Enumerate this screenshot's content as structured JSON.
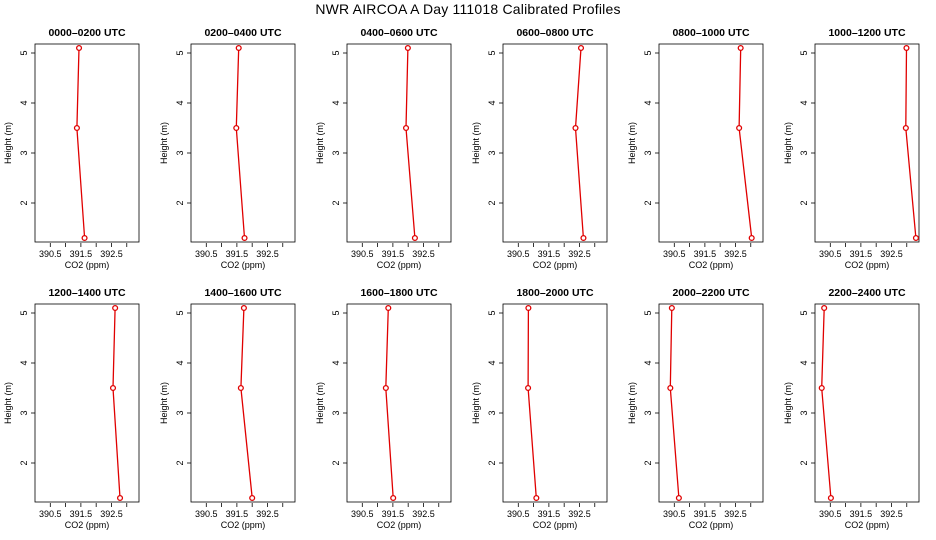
{
  "figure": {
    "title": "NWR AIRCOA A  Day 111018  Calibrated Profiles"
  },
  "chart_data": [
    {
      "type": "line",
      "title": "0000–0200 UTC",
      "xlabel": "CO2 (ppm)",
      "ylabel": "Height (m)",
      "xlim": [
        390.0,
        393.4
      ],
      "ylim": [
        1.22,
        5.18
      ],
      "x_ticks": [
        "390.5",
        "391.5",
        "392.5"
      ],
      "y_ticks": [
        "2",
        "3",
        "4",
        "5"
      ],
      "series": [
        {
          "x": [
            391.44,
            391.37,
            391.62
          ],
          "y": [
            5.1,
            3.5,
            1.3
          ]
        }
      ],
      "color": "#e00000"
    },
    {
      "type": "line",
      "title": "0200–0400 UTC",
      "xlabel": "CO2 (ppm)",
      "ylabel": "Height (m)",
      "xlim": [
        390.0,
        393.4
      ],
      "ylim": [
        1.22,
        5.18
      ],
      "x_ticks": [
        "390.5",
        "391.5",
        "392.5"
      ],
      "y_ticks": [
        "2",
        "3",
        "4",
        "5"
      ],
      "series": [
        {
          "x": [
            391.56,
            391.48,
            391.75
          ],
          "y": [
            5.1,
            3.5,
            1.3
          ]
        }
      ],
      "color": "#e00000"
    },
    {
      "type": "line",
      "title": "0400–0600 UTC",
      "xlabel": "CO2 (ppm)",
      "ylabel": "Height (m)",
      "xlim": [
        390.0,
        393.4
      ],
      "ylim": [
        1.22,
        5.18
      ],
      "x_ticks": [
        "390.5",
        "391.5",
        "392.5"
      ],
      "y_ticks": [
        "2",
        "3",
        "4",
        "5"
      ],
      "series": [
        {
          "x": [
            391.99,
            391.93,
            392.22
          ],
          "y": [
            5.1,
            3.5,
            1.3
          ]
        }
      ],
      "color": "#e00000"
    },
    {
      "type": "line",
      "title": "0600–0800 UTC",
      "xlabel": "CO2 (ppm)",
      "ylabel": "Height (m)",
      "xlim": [
        390.0,
        393.4
      ],
      "ylim": [
        1.22,
        5.18
      ],
      "x_ticks": [
        "390.5",
        "391.5",
        "392.5"
      ],
      "y_ticks": [
        "2",
        "3",
        "4",
        "5"
      ],
      "series": [
        {
          "x": [
            392.55,
            392.37,
            392.63
          ],
          "y": [
            5.1,
            3.5,
            1.3
          ]
        }
      ],
      "color": "#e00000"
    },
    {
      "type": "line",
      "title": "0800–1000 UTC",
      "xlabel": "CO2 (ppm)",
      "ylabel": "Height (m)",
      "xlim": [
        390.0,
        393.4
      ],
      "ylim": [
        1.22,
        5.18
      ],
      "x_ticks": [
        "390.5",
        "391.5",
        "392.5"
      ],
      "y_ticks": [
        "2",
        "3",
        "4",
        "5"
      ],
      "series": [
        {
          "x": [
            392.67,
            392.62,
            393.03
          ],
          "y": [
            5.1,
            3.5,
            1.3
          ]
        }
      ],
      "color": "#e00000"
    },
    {
      "type": "line",
      "title": "1000–1200 UTC",
      "xlabel": "CO2 (ppm)",
      "ylabel": "Height (m)",
      "xlim": [
        390.0,
        393.4
      ],
      "ylim": [
        1.22,
        5.18
      ],
      "x_ticks": [
        "390.5",
        "391.5",
        "392.5"
      ],
      "y_ticks": [
        "2",
        "3",
        "4",
        "5"
      ],
      "series": [
        {
          "x": [
            392.99,
            392.97,
            393.3
          ],
          "y": [
            5.1,
            3.5,
            1.3
          ]
        }
      ],
      "color": "#e00000"
    },
    {
      "type": "line",
      "title": "1200–1400 UTC",
      "xlabel": "CO2 (ppm)",
      "ylabel": "Height (m)",
      "xlim": [
        390.0,
        393.4
      ],
      "ylim": [
        1.22,
        5.18
      ],
      "x_ticks": [
        "390.5",
        "391.5",
        "392.5"
      ],
      "y_ticks": [
        "2",
        "3",
        "4",
        "5"
      ],
      "series": [
        {
          "x": [
            392.62,
            392.55,
            392.78
          ],
          "y": [
            5.1,
            3.5,
            1.3
          ]
        }
      ],
      "color": "#e00000"
    },
    {
      "type": "line",
      "title": "1400–1600 UTC",
      "xlabel": "CO2 (ppm)",
      "ylabel": "Height (m)",
      "xlim": [
        390.0,
        393.4
      ],
      "ylim": [
        1.22,
        5.18
      ],
      "x_ticks": [
        "390.5",
        "391.5",
        "392.5"
      ],
      "y_ticks": [
        "2",
        "3",
        "4",
        "5"
      ],
      "series": [
        {
          "x": [
            391.73,
            391.63,
            392.0
          ],
          "y": [
            5.1,
            3.5,
            1.3
          ]
        }
      ],
      "color": "#e00000"
    },
    {
      "type": "line",
      "title": "1600–1800 UTC",
      "xlabel": "CO2 (ppm)",
      "ylabel": "Height (m)",
      "xlim": [
        390.0,
        393.4
      ],
      "ylim": [
        1.22,
        5.18
      ],
      "x_ticks": [
        "390.5",
        "391.5",
        "392.5"
      ],
      "y_ticks": [
        "2",
        "3",
        "4",
        "5"
      ],
      "series": [
        {
          "x": [
            391.35,
            391.27,
            391.51
          ],
          "y": [
            5.1,
            3.5,
            1.3
          ]
        }
      ],
      "color": "#e00000"
    },
    {
      "type": "line",
      "title": "1800–2000 UTC",
      "xlabel": "CO2 (ppm)",
      "ylabel": "Height (m)",
      "xlim": [
        390.0,
        393.4
      ],
      "ylim": [
        1.22,
        5.18
      ],
      "x_ticks": [
        "390.5",
        "391.5",
        "392.5"
      ],
      "y_ticks": [
        "2",
        "3",
        "4",
        "5"
      ],
      "series": [
        {
          "x": [
            390.83,
            390.82,
            391.09
          ],
          "y": [
            5.1,
            3.5,
            1.3
          ]
        }
      ],
      "color": "#e00000"
    },
    {
      "type": "line",
      "title": "2000–2200 UTC",
      "xlabel": "CO2 (ppm)",
      "ylabel": "Height (m)",
      "xlim": [
        390.0,
        393.4
      ],
      "ylim": [
        1.22,
        5.18
      ],
      "x_ticks": [
        "390.5",
        "391.5",
        "392.5"
      ],
      "y_ticks": [
        "2",
        "3",
        "4",
        "5"
      ],
      "series": [
        {
          "x": [
            390.42,
            390.37,
            390.65
          ],
          "y": [
            5.1,
            3.5,
            1.3
          ]
        }
      ],
      "color": "#e00000"
    },
    {
      "type": "line",
      "title": "2200–2400 UTC",
      "xlabel": "CO2 (ppm)",
      "ylabel": "Height (m)",
      "xlim": [
        390.0,
        393.4
      ],
      "ylim": [
        1.22,
        5.18
      ],
      "x_ticks": [
        "390.5",
        "391.5",
        "392.5"
      ],
      "y_ticks": [
        "2",
        "3",
        "4",
        "5"
      ],
      "series": [
        {
          "x": [
            390.3,
            390.22,
            390.52
          ],
          "y": [
            5.1,
            3.5,
            1.3
          ]
        }
      ],
      "color": "#e00000"
    }
  ]
}
